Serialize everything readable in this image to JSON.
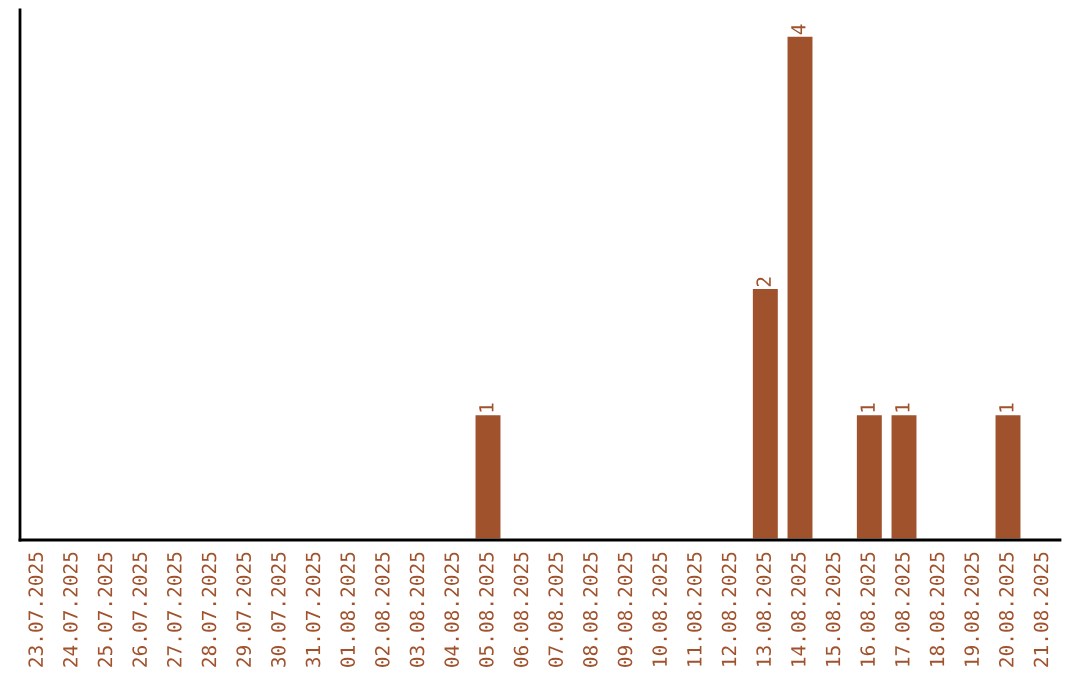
{
  "chart_data": {
    "type": "bar",
    "categories": [
      "23.07.2025",
      "24.07.2025",
      "25.07.2025",
      "26.07.2025",
      "27.07.2025",
      "28.07.2025",
      "29.07.2025",
      "30.07.2025",
      "31.07.2025",
      "01.08.2025",
      "02.08.2025",
      "03.08.2025",
      "04.08.2025",
      "05.08.2025",
      "06.08.2025",
      "07.08.2025",
      "08.08.2025",
      "09.08.2025",
      "10.08.2025",
      "11.08.2025",
      "12.08.2025",
      "13.08.2025",
      "14.08.2025",
      "15.08.2025",
      "16.08.2025",
      "17.08.2025",
      "18.08.2025",
      "19.08.2025",
      "20.08.2025",
      "21.08.2025"
    ],
    "values": [
      null,
      null,
      null,
      null,
      null,
      null,
      null,
      null,
      null,
      null,
      null,
      null,
      null,
      1,
      null,
      null,
      null,
      null,
      null,
      null,
      null,
      2,
      4,
      null,
      1,
      1,
      null,
      null,
      1,
      null
    ],
    "data_labels": true,
    "color": "#a0522d",
    "tick_labels": "x",
    "grid": false,
    "legend": false
  }
}
